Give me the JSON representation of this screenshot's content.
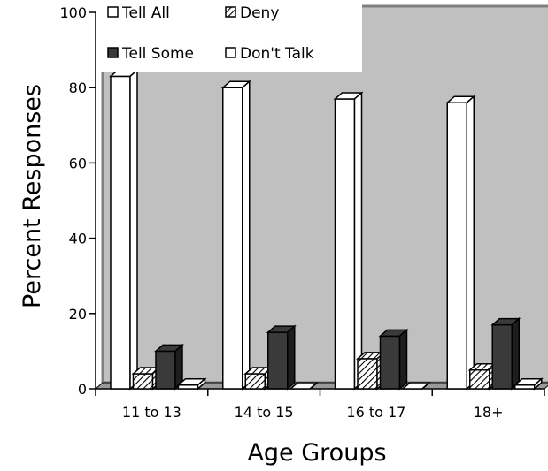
{
  "chart_data": {
    "type": "bar",
    "title": "",
    "xlabel": "Age Groups",
    "ylabel": "Percent Responses",
    "ylim": [
      0,
      100
    ],
    "yticks": [
      0,
      20,
      40,
      60,
      80,
      100
    ],
    "grid": false,
    "three_d": true,
    "legend_position": "top-inside",
    "categories": [
      "11 to 13",
      "14 to 15",
      "16 to 17",
      "18+"
    ],
    "series": [
      {
        "name": "Tell All",
        "values": [
          83,
          80,
          77,
          76
        ],
        "color": "#ffffff",
        "pattern": "solid"
      },
      {
        "name": "Deny",
        "values": [
          4,
          4,
          8,
          5
        ],
        "color": "#cccccc",
        "pattern": "hatch"
      },
      {
        "name": "Tell Some",
        "values": [
          10,
          15,
          14,
          17
        ],
        "color": "#3a3a3a",
        "pattern": "solid"
      },
      {
        "name": "Don't Talk",
        "values": [
          1,
          0,
          0,
          1
        ],
        "color": "#ffffff",
        "pattern": "solid"
      }
    ],
    "colors": {
      "plot_background": "#c0c0c0",
      "wall_border": "#7f7f7f"
    }
  }
}
